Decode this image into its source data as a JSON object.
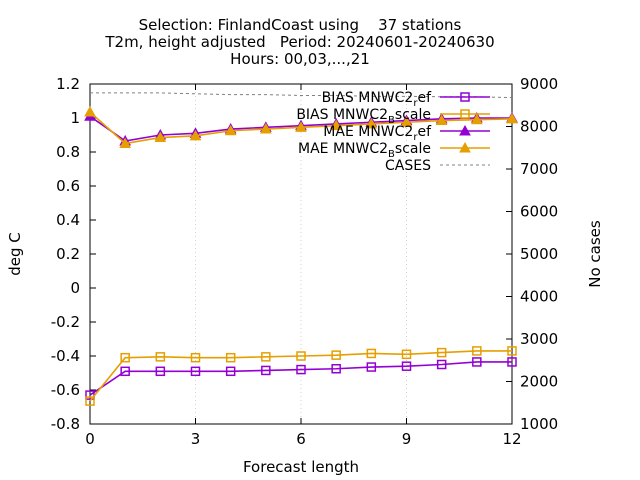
{
  "chart_data": {
    "type": "line",
    "title_lines": [
      "Selection: FinlandCoast using    37 stations",
      "T2m, height adjusted   Period: 20240601-20240630",
      "Hours: 00,03,...,21"
    ],
    "xlabel": "Forecast length",
    "ylabel": "deg C",
    "y2label": "No cases",
    "xlim": [
      0,
      12
    ],
    "ylim": [
      -0.8,
      1.2
    ],
    "y2lim": [
      1000,
      9000
    ],
    "xticks": [
      "0",
      "3",
      "6",
      "9",
      "12"
    ],
    "yticks": [
      "-0.8",
      "-0.6",
      "-0.4",
      "-0.2",
      "0",
      "0.2",
      "0.4",
      "0.6",
      "0.8",
      "1",
      "1.2"
    ],
    "y2ticks": [
      "1000",
      "2000",
      "3000",
      "4000",
      "5000",
      "6000",
      "7000",
      "8000",
      "9000"
    ],
    "legend_position": "top-right",
    "x": [
      0,
      1,
      2,
      3,
      4,
      5,
      6,
      7,
      8,
      9,
      10,
      11,
      12
    ],
    "series": [
      {
        "name": "BIAS MNWC2_ref",
        "label_main": "BIAS MNWC2",
        "label_sub": "r",
        "label_tail": "ef",
        "color": "#9400d3",
        "marker": "square",
        "axis": "y",
        "values": [
          -0.63,
          -0.49,
          -0.49,
          -0.49,
          -0.49,
          -0.485,
          -0.48,
          -0.475,
          -0.465,
          -0.46,
          -0.45,
          -0.435,
          -0.435
        ]
      },
      {
        "name": "BIAS MNWC2_Bscale",
        "label_main": "BIAS MNWC2",
        "label_sub": "B",
        "label_tail": "scale",
        "color": "#e69f00",
        "marker": "square",
        "axis": "y",
        "values": [
          -0.665,
          -0.41,
          -0.405,
          -0.41,
          -0.41,
          -0.405,
          -0.4,
          -0.395,
          -0.385,
          -0.39,
          -0.38,
          -0.37,
          -0.37
        ]
      },
      {
        "name": "MAE MNWC2_ref",
        "label_main": "MAE MNWC2",
        "label_sub": "r",
        "label_tail": "ef",
        "color": "#9400d3",
        "marker": "triangle",
        "axis": "y",
        "values": [
          1.01,
          0.865,
          0.9,
          0.91,
          0.935,
          0.945,
          0.955,
          0.965,
          0.975,
          0.985,
          0.995,
          1.0,
          1.0
        ]
      },
      {
        "name": "MAE MNWC2_Bscale",
        "label_main": "MAE MNWC2",
        "label_sub": "B",
        "label_tail": "scale",
        "color": "#e69f00",
        "marker": "triangle",
        "axis": "y",
        "values": [
          1.035,
          0.85,
          0.885,
          0.895,
          0.925,
          0.935,
          0.945,
          0.955,
          0.965,
          0.975,
          0.985,
          0.99,
          0.995
        ]
      },
      {
        "name": "CASES",
        "label_main": "CASES",
        "label_sub": "",
        "label_tail": "",
        "color": "#808080",
        "marker": "none",
        "dashed": true,
        "axis": "y2",
        "values": [
          8790,
          8790,
          8790,
          8770,
          8750,
          8750,
          8730,
          8730,
          8710,
          8710,
          8700,
          8700,
          8680
        ]
      }
    ]
  }
}
